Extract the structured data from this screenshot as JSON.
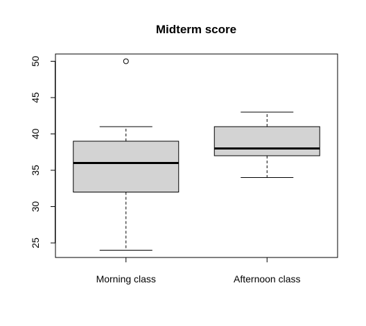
{
  "chart_data": {
    "type": "box",
    "title": "Midterm score",
    "xlabel": "",
    "ylabel": "",
    "ylim": [
      23,
      51
    ],
    "yticks": [
      25,
      30,
      35,
      40,
      45,
      50
    ],
    "categories": [
      "Morning class",
      "Afternoon class"
    ],
    "boxes": [
      {
        "category": "Morning class",
        "whisker_low": 24,
        "q1": 32,
        "median": 36,
        "q3": 39,
        "whisker_high": 41,
        "outliers": [
          50
        ]
      },
      {
        "category": "Afternoon class",
        "whisker_low": 34,
        "q1": 37,
        "median": 38,
        "q3": 41,
        "whisker_high": 43,
        "outliers": []
      }
    ],
    "box_fill": "#d3d3d3",
    "grid": false
  }
}
